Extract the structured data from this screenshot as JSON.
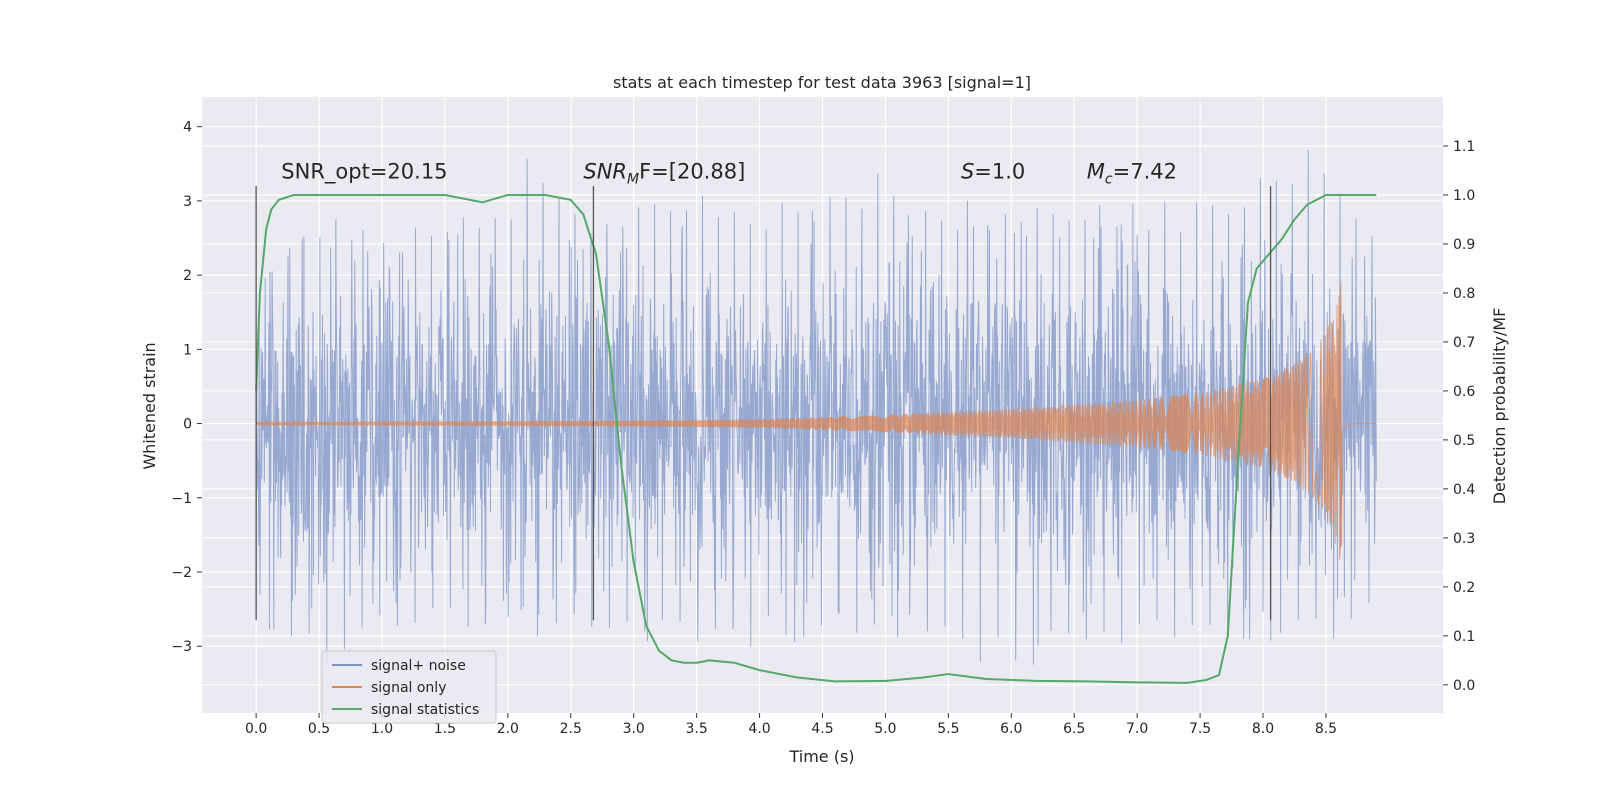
{
  "chart_data": {
    "type": "line",
    "title": "stats at each timestep for test data 3963 [signal=1]",
    "xlabel": "Time (s)",
    "ylabel": "Whitened strain",
    "y2label": "Detection probability/MF",
    "xlim": [
      -0.43,
      9.43
    ],
    "ylim": [
      -3.9,
      4.4
    ],
    "y2lim": [
      -0.0575,
      1.2
    ],
    "x_ticks": [
      "0.0",
      "0.5",
      "1.0",
      "1.5",
      "2.0",
      "2.5",
      "3.0",
      "3.5",
      "4.0",
      "4.5",
      "5.0",
      "5.5",
      "6.0",
      "6.5",
      "7.0",
      "7.5",
      "8.0",
      "8.5"
    ],
    "x_tick_values": [
      0.0,
      0.5,
      1.0,
      1.5,
      2.0,
      2.5,
      3.0,
      3.5,
      4.0,
      4.5,
      5.0,
      5.5,
      6.0,
      6.5,
      7.0,
      7.5,
      8.0,
      8.5
    ],
    "y_ticks": [
      "−3",
      "−2",
      "−1",
      "0",
      "1",
      "2",
      "3",
      "4"
    ],
    "y_tick_values": [
      -3,
      -2,
      -1,
      0,
      1,
      2,
      3,
      4
    ],
    "y2_ticks": [
      "0.0",
      "0.1",
      "0.2",
      "0.3",
      "0.4",
      "0.5",
      "0.6",
      "0.7",
      "0.8",
      "0.9",
      "1.0",
      "1.1"
    ],
    "y2_tick_values": [
      0.0,
      0.1,
      0.2,
      0.3,
      0.4,
      0.5,
      0.6,
      0.7,
      0.8,
      0.9,
      1.0,
      1.1
    ],
    "grid": true,
    "legend_position": "bottom-left",
    "series": [
      {
        "name": "signal+ noise",
        "color": "#7b93c5",
        "kind": "dense noise, roughly 8.9 s of whitened strain, range about -3.4 to 4.0",
        "t_range": [
          0.0,
          8.9
        ],
        "envelope": {
          "t": [
            0.0,
            0.5,
            1.0,
            1.5,
            2.0,
            2.1,
            2.5,
            3.0,
            3.5,
            4.0,
            4.5,
            5.0,
            5.5,
            6.0,
            6.5,
            7.0,
            7.5,
            8.0,
            8.5,
            8.9
          ],
          "max": [
            1.8,
            2.9,
            2.6,
            2.8,
            2.9,
            4.0,
            2.9,
            2.9,
            3.2,
            2.9,
            3.2,
            3.5,
            3.0,
            3.0,
            2.9,
            3.0,
            3.0,
            3.6,
            3.8,
            2.6
          ],
          "min": [
            -2.6,
            -3.4,
            -2.9,
            -2.9,
            -2.6,
            -2.8,
            -3.0,
            -2.9,
            -3.2,
            -3.0,
            -2.9,
            -2.8,
            -3.2,
            -3.4,
            -3.2,
            -3.0,
            -2.9,
            -2.9,
            -3.1,
            -2.8
          ]
        }
      },
      {
        "name": "signal only",
        "color": "#dd8452",
        "kind": "chirp, amplitude grows until merger near t=8.62 s",
        "t_range": [
          0.0,
          8.9
        ],
        "envelope": {
          "t": [
            0.0,
            2.0,
            3.0,
            4.0,
            5.0,
            6.0,
            7.0,
            7.5,
            8.0,
            8.2,
            8.4,
            8.5,
            8.55,
            8.6,
            8.62,
            8.65,
            8.7,
            8.9
          ],
          "amp": [
            0.02,
            0.03,
            0.04,
            0.06,
            0.12,
            0.2,
            0.32,
            0.42,
            0.6,
            0.75,
            1.0,
            1.25,
            1.45,
            1.8,
            1.9,
            0.6,
            0.05,
            0.0
          ]
        }
      },
      {
        "name": "signal statistics",
        "color": "#55a868",
        "axis": "right",
        "x": [
          0.0,
          0.03,
          0.08,
          0.12,
          0.18,
          0.3,
          0.5,
          1.0,
          1.3,
          1.5,
          1.7,
          1.8,
          2.0,
          2.3,
          2.5,
          2.6,
          2.7,
          2.8,
          2.9,
          3.0,
          3.1,
          3.2,
          3.3,
          3.4,
          3.5,
          3.6,
          3.8,
          4.0,
          4.3,
          4.6,
          5.0,
          5.3,
          5.5,
          5.8,
          6.2,
          6.6,
          7.0,
          7.4,
          7.55,
          7.65,
          7.72,
          7.8,
          7.88,
          7.95,
          8.05,
          8.15,
          8.25,
          8.35,
          8.5,
          8.7,
          8.9
        ],
        "y": [
          0.6,
          0.8,
          0.93,
          0.97,
          0.99,
          1.0,
          1.0,
          1.0,
          1.0,
          1.0,
          0.99,
          0.985,
          1.0,
          1.0,
          0.99,
          0.96,
          0.88,
          0.7,
          0.45,
          0.25,
          0.12,
          0.07,
          0.05,
          0.045,
          0.045,
          0.05,
          0.045,
          0.03,
          0.015,
          0.007,
          0.008,
          0.015,
          0.022,
          0.012,
          0.008,
          0.007,
          0.005,
          0.004,
          0.01,
          0.02,
          0.1,
          0.45,
          0.78,
          0.85,
          0.88,
          0.91,
          0.95,
          0.98,
          1.0,
          1.0,
          1.0
        ]
      }
    ],
    "vertical_lines": [
      0.0,
      2.68,
      8.06
    ],
    "vertical_line_range": [
      -2.65,
      3.2
    ],
    "annotations": [
      {
        "text": "SNR_opt=20.15",
        "x": 0.2,
        "y": 3.3
      },
      {
        "text": "F=[20.88]",
        "prefix": "SNR",
        "prefix_sub": "M",
        "x": 2.6,
        "y": 3.3
      },
      {
        "text": "=1.0",
        "prefix": "S",
        "x": 5.6,
        "y": 3.3
      },
      {
        "text": "=7.42",
        "prefix": "M",
        "prefix_sub": "c",
        "x": 6.6,
        "y": 3.3
      }
    ]
  }
}
